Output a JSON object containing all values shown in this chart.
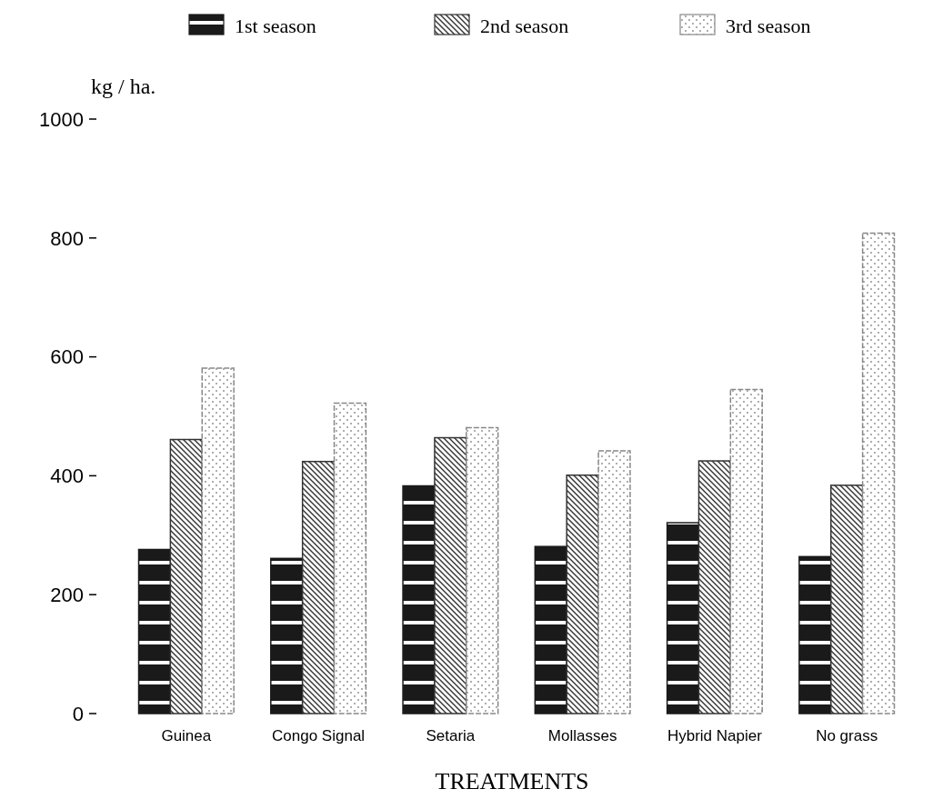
{
  "chart_data": {
    "type": "bar",
    "xlabel": "TREATMENTS",
    "ylabel": "kg / ha.",
    "categories": [
      "Guinea",
      "Congo Signal",
      "Setaria",
      "Mollasses",
      "Hybrid Napier",
      "No grass"
    ],
    "series": [
      {
        "name": "1st season",
        "color": "#1a1a1a",
        "values": [
          276,
          261,
          383,
          281,
          321,
          264
        ]
      },
      {
        "name": "2nd season",
        "color": "#333333",
        "values": [
          461,
          424,
          464,
          401,
          425,
          384
        ]
      },
      {
        "name": "3rd season",
        "color": "#888888",
        "values": [
          581,
          522,
          481,
          442,
          545,
          808
        ]
      }
    ],
    "ylim": [
      0,
      1000
    ],
    "yticks": [
      0,
      200,
      400,
      600,
      800,
      1000
    ],
    "grid": false,
    "legend": "top"
  }
}
